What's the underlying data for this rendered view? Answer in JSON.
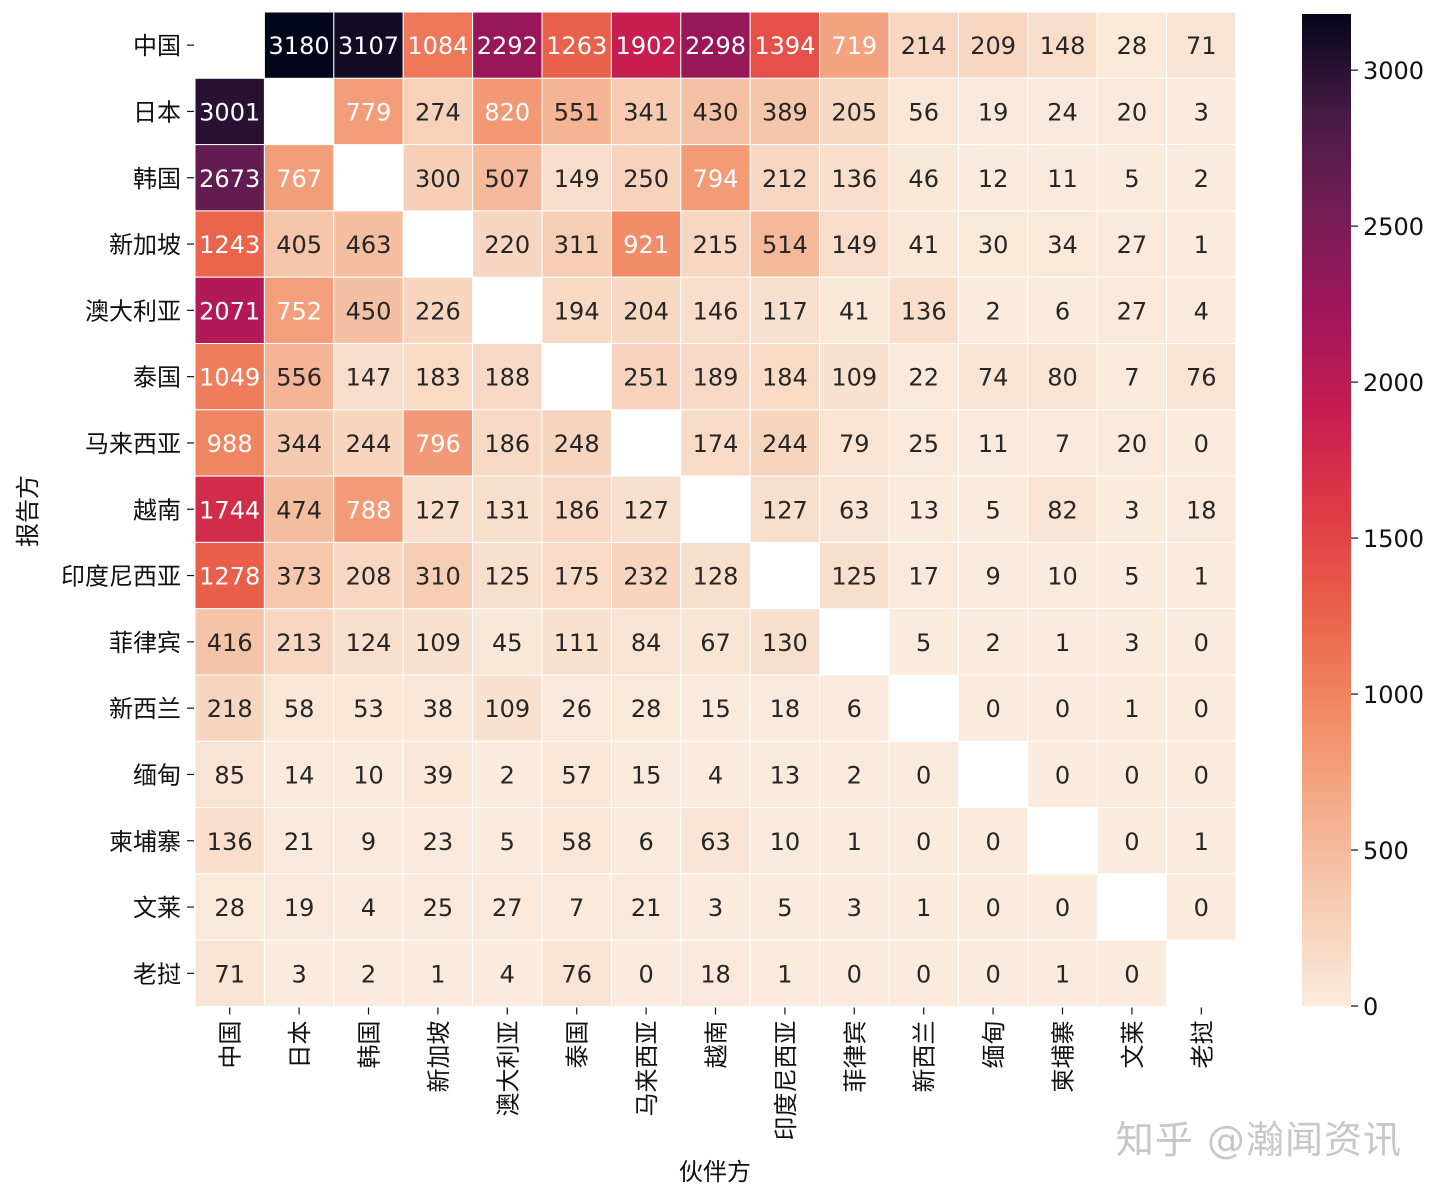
{
  "chart_data": {
    "type": "heatmap",
    "title": "",
    "xlabel": "伙伴方",
    "ylabel": "报告方",
    "rows": [
      "中国",
      "日本",
      "韩国",
      "新加坡",
      "澳大利亚",
      "泰国",
      "马来西亚",
      "越南",
      "印度尼西亚",
      "菲律宾",
      "新西兰",
      "缅甸",
      "柬埔寨",
      "文莱",
      "老挝"
    ],
    "columns": [
      "中国",
      "日本",
      "韩国",
      "新加坡",
      "澳大利亚",
      "泰国",
      "马来西亚",
      "越南",
      "印度尼西亚",
      "菲律宾",
      "新西兰",
      "缅甸",
      "柬埔寨",
      "文莱",
      "老挝"
    ],
    "values": [
      [
        null,
        3180,
        3107,
        1084,
        2292,
        1263,
        1902,
        2298,
        1394,
        719,
        214,
        209,
        148,
        28,
        71
      ],
      [
        3001,
        null,
        779,
        274,
        820,
        551,
        341,
        430,
        389,
        205,
        56,
        19,
        24,
        20,
        3
      ],
      [
        2673,
        767,
        null,
        300,
        507,
        149,
        250,
        794,
        212,
        136,
        46,
        12,
        11,
        5,
        2
      ],
      [
        1243,
        405,
        463,
        null,
        220,
        311,
        921,
        215,
        514,
        149,
        41,
        30,
        34,
        27,
        1
      ],
      [
        2071,
        752,
        450,
        226,
        null,
        194,
        204,
        146,
        117,
        41,
        136,
        2,
        6,
        27,
        4
      ],
      [
        1049,
        556,
        147,
        183,
        188,
        null,
        251,
        189,
        184,
        109,
        22,
        74,
        80,
        7,
        76
      ],
      [
        988,
        344,
        244,
        796,
        186,
        248,
        null,
        174,
        244,
        79,
        25,
        11,
        7,
        20,
        0
      ],
      [
        1744,
        474,
        788,
        127,
        131,
        186,
        127,
        null,
        127,
        63,
        13,
        5,
        82,
        3,
        18
      ],
      [
        1278,
        373,
        208,
        310,
        125,
        175,
        232,
        128,
        null,
        125,
        17,
        9,
        10,
        5,
        1
      ],
      [
        416,
        213,
        124,
        109,
        45,
        111,
        84,
        67,
        130,
        null,
        5,
        2,
        1,
        3,
        0
      ],
      [
        218,
        58,
        53,
        38,
        109,
        26,
        28,
        15,
        18,
        6,
        null,
        0,
        0,
        1,
        0
      ],
      [
        85,
        14,
        10,
        39,
        2,
        57,
        15,
        4,
        13,
        2,
        0,
        null,
        0,
        0,
        0
      ],
      [
        136,
        21,
        9,
        23,
        5,
        58,
        6,
        63,
        10,
        1,
        0,
        0,
        null,
        0,
        1
      ],
      [
        28,
        19,
        4,
        25,
        27,
        7,
        21,
        3,
        5,
        3,
        1,
        0,
        0,
        null,
        0
      ],
      [
        71,
        3,
        2,
        1,
        4,
        76,
        0,
        18,
        1,
        0,
        0,
        0,
        1,
        0,
        null
      ]
    ],
    "colorbar": {
      "min": 0,
      "max": 3180,
      "ticks": [
        0,
        500,
        1000,
        1500,
        2000,
        2500,
        3000
      ],
      "colormap": "rocket_r"
    }
  },
  "watermark": "知乎 @瀚闻资讯"
}
